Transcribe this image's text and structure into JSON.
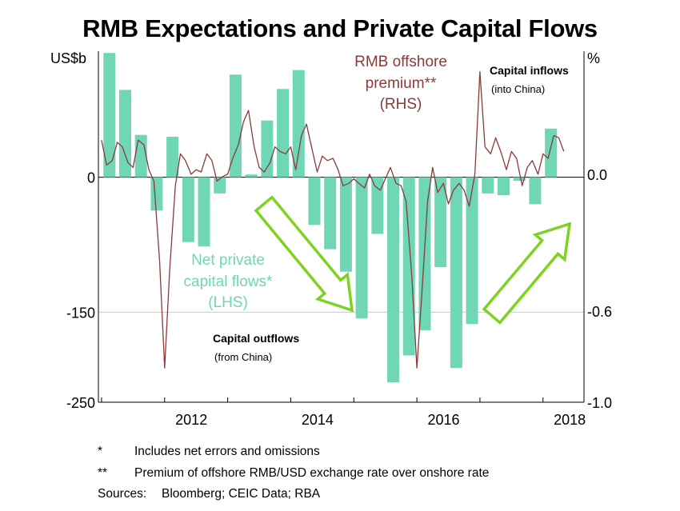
{
  "chart_data": {
    "type": "bar+line",
    "title": "RMB Expectations and Private Capital Flows",
    "left_axis": {
      "unit_label": "US$b",
      "range": [
        -250,
        140
      ],
      "ticks": [
        0,
        -150,
        -250
      ]
    },
    "right_axis": {
      "unit_label": "%",
      "range": [
        -1.0,
        0.54
      ],
      "ticks": [
        "0.0",
        "-0.6",
        "-1.0"
      ]
    },
    "x_axis": {
      "ticks": [
        "2012",
        "2014",
        "2016",
        "2018"
      ]
    },
    "gridlines": [
      0,
      -150
    ],
    "series": [
      {
        "name": "Net private capital flows*",
        "axis": "LHS",
        "type": "bar",
        "color": "#6fd6b6",
        "points": [
          {
            "x": 2011.25,
            "y": 138
          },
          {
            "x": 2011.5,
            "y": 97
          },
          {
            "x": 2011.75,
            "y": 47
          },
          {
            "x": 2012.0,
            "y": -37
          },
          {
            "x": 2012.25,
            "y": 45
          },
          {
            "x": 2012.5,
            "y": -72
          },
          {
            "x": 2012.75,
            "y": -77
          },
          {
            "x": 2013.0,
            "y": -18
          },
          {
            "x": 2013.25,
            "y": 114
          },
          {
            "x": 2013.5,
            "y": 3
          },
          {
            "x": 2013.75,
            "y": 63
          },
          {
            "x": 2014.0,
            "y": 98
          },
          {
            "x": 2014.25,
            "y": 119
          },
          {
            "x": 2014.5,
            "y": -53
          },
          {
            "x": 2014.75,
            "y": -80
          },
          {
            "x": 2015.0,
            "y": -105
          },
          {
            "x": 2015.25,
            "y": -157
          },
          {
            "x": 2015.5,
            "y": -63
          },
          {
            "x": 2015.75,
            "y": -228
          },
          {
            "x": 2016.0,
            "y": -198
          },
          {
            "x": 2016.25,
            "y": -170
          },
          {
            "x": 2016.5,
            "y": -100
          },
          {
            "x": 2016.75,
            "y": -212
          },
          {
            "x": 2017.0,
            "y": -163
          },
          {
            "x": 2017.25,
            "y": -18
          },
          {
            "x": 2017.5,
            "y": -20
          },
          {
            "x": 2017.75,
            "y": -4
          },
          {
            "x": 2018.0,
            "y": -30
          },
          {
            "x": 2018.25,
            "y": 54
          }
        ],
        "label_lines": [
          "Net private",
          "capital flows*",
          "(LHS)"
        ]
      },
      {
        "name": "RMB offshore premium**",
        "axis": "RHS",
        "type": "line",
        "color": "#8b3a3a",
        "points": [
          {
            "x": 2011.0,
            "y": 0.15
          },
          {
            "x": 2011.08,
            "y": 0.04
          },
          {
            "x": 2011.17,
            "y": 0.06
          },
          {
            "x": 2011.25,
            "y": 0.14
          },
          {
            "x": 2011.33,
            "y": 0.12
          },
          {
            "x": 2011.42,
            "y": 0.05
          },
          {
            "x": 2011.5,
            "y": 0.03
          },
          {
            "x": 2011.58,
            "y": 0.15
          },
          {
            "x": 2011.67,
            "y": 0.13
          },
          {
            "x": 2011.75,
            "y": 0.02
          },
          {
            "x": 2011.83,
            "y": -0.03
          },
          {
            "x": 2011.92,
            "y": -0.38
          },
          {
            "x": 2012.0,
            "y": -0.85
          },
          {
            "x": 2012.08,
            "y": -0.42
          },
          {
            "x": 2012.17,
            "y": -0.05
          },
          {
            "x": 2012.25,
            "y": 0.09
          },
          {
            "x": 2012.33,
            "y": 0.06
          },
          {
            "x": 2012.42,
            "y": 0.0
          },
          {
            "x": 2012.5,
            "y": 0.02
          },
          {
            "x": 2012.58,
            "y": 0.01
          },
          {
            "x": 2012.67,
            "y": 0.09
          },
          {
            "x": 2012.75,
            "y": 0.06
          },
          {
            "x": 2012.83,
            "y": -0.03
          },
          {
            "x": 2012.92,
            "y": -0.01
          },
          {
            "x": 2013.0,
            "y": 0.0
          },
          {
            "x": 2013.08,
            "y": 0.07
          },
          {
            "x": 2013.17,
            "y": 0.13
          },
          {
            "x": 2013.25,
            "y": 0.23
          },
          {
            "x": 2013.33,
            "y": 0.28
          },
          {
            "x": 2013.42,
            "y": 0.12
          },
          {
            "x": 2013.5,
            "y": 0.03
          },
          {
            "x": 2013.58,
            "y": 0.01
          },
          {
            "x": 2013.67,
            "y": 0.05
          },
          {
            "x": 2013.75,
            "y": 0.12
          },
          {
            "x": 2013.83,
            "y": 0.1
          },
          {
            "x": 2013.92,
            "y": 0.09
          },
          {
            "x": 2014.0,
            "y": 0.12
          },
          {
            "x": 2014.08,
            "y": 0.02
          },
          {
            "x": 2014.17,
            "y": 0.17
          },
          {
            "x": 2014.25,
            "y": 0.22
          },
          {
            "x": 2014.33,
            "y": 0.12
          },
          {
            "x": 2014.42,
            "y": 0.01
          },
          {
            "x": 2014.5,
            "y": 0.08
          },
          {
            "x": 2014.58,
            "y": 0.06
          },
          {
            "x": 2014.67,
            "y": 0.07
          },
          {
            "x": 2014.75,
            "y": 0.02
          },
          {
            "x": 2014.83,
            "y": -0.05
          },
          {
            "x": 2014.92,
            "y": -0.04
          },
          {
            "x": 2015.0,
            "y": -0.02
          },
          {
            "x": 2015.08,
            "y": -0.04
          },
          {
            "x": 2015.17,
            "y": -0.06
          },
          {
            "x": 2015.25,
            "y": 0.0
          },
          {
            "x": 2015.33,
            "y": -0.05
          },
          {
            "x": 2015.42,
            "y": -0.07
          },
          {
            "x": 2015.5,
            "y": -0.02
          },
          {
            "x": 2015.58,
            "y": 0.03
          },
          {
            "x": 2015.67,
            "y": -0.04
          },
          {
            "x": 2015.75,
            "y": -0.05
          },
          {
            "x": 2015.83,
            "y": -0.12
          },
          {
            "x": 2015.92,
            "y": -0.45
          },
          {
            "x": 2016.0,
            "y": -0.85
          },
          {
            "x": 2016.08,
            "y": -0.52
          },
          {
            "x": 2016.17,
            "y": -0.12
          },
          {
            "x": 2016.25,
            "y": 0.03
          },
          {
            "x": 2016.33,
            "y": -0.08
          },
          {
            "x": 2016.42,
            "y": -0.04
          },
          {
            "x": 2016.5,
            "y": -0.13
          },
          {
            "x": 2016.58,
            "y": -0.07
          },
          {
            "x": 2016.67,
            "y": -0.04
          },
          {
            "x": 2016.75,
            "y": -0.07
          },
          {
            "x": 2016.83,
            "y": -0.14
          },
          {
            "x": 2016.92,
            "y": 0.0
          },
          {
            "x": 2017.0,
            "y": 0.45
          },
          {
            "x": 2017.08,
            "y": 0.12
          },
          {
            "x": 2017.17,
            "y": 0.09
          },
          {
            "x": 2017.25,
            "y": 0.16
          },
          {
            "x": 2017.33,
            "y": 0.1
          },
          {
            "x": 2017.42,
            "y": 0.02
          },
          {
            "x": 2017.5,
            "y": 0.1
          },
          {
            "x": 2017.58,
            "y": 0.07
          },
          {
            "x": 2017.67,
            "y": -0.05
          },
          {
            "x": 2017.75,
            "y": 0.03
          },
          {
            "x": 2017.83,
            "y": 0.06
          },
          {
            "x": 2017.92,
            "y": 0.0
          },
          {
            "x": 2018.0,
            "y": 0.09
          },
          {
            "x": 2018.08,
            "y": 0.07
          },
          {
            "x": 2018.17,
            "y": 0.17
          },
          {
            "x": 2018.25,
            "y": 0.16
          },
          {
            "x": 2018.33,
            "y": 0.1
          }
        ],
        "label_lines": [
          "RMB offshore",
          "premium**",
          "(RHS)"
        ]
      }
    ],
    "annotations": [
      {
        "name": "capital-inflows",
        "title": "Capital inflows",
        "detail": "(into China)"
      },
      {
        "name": "capital-outflows",
        "title": "Capital outflows",
        "detail": "(from China)"
      }
    ],
    "arrows": [
      {
        "name": "down-arrow",
        "direction": "down-right",
        "color": "#7ed321"
      },
      {
        "name": "up-arrow",
        "direction": "up-right",
        "color": "#7ed321"
      }
    ]
  },
  "notes": [
    {
      "mark": "*",
      "text": "Includes net errors and omissions"
    },
    {
      "mark": "**",
      "text": "Premium of offshore RMB/USD exchange rate over onshore rate"
    }
  ],
  "sources": {
    "label": "Sources:",
    "text": "Bloomberg; CEIC Data; RBA"
  }
}
